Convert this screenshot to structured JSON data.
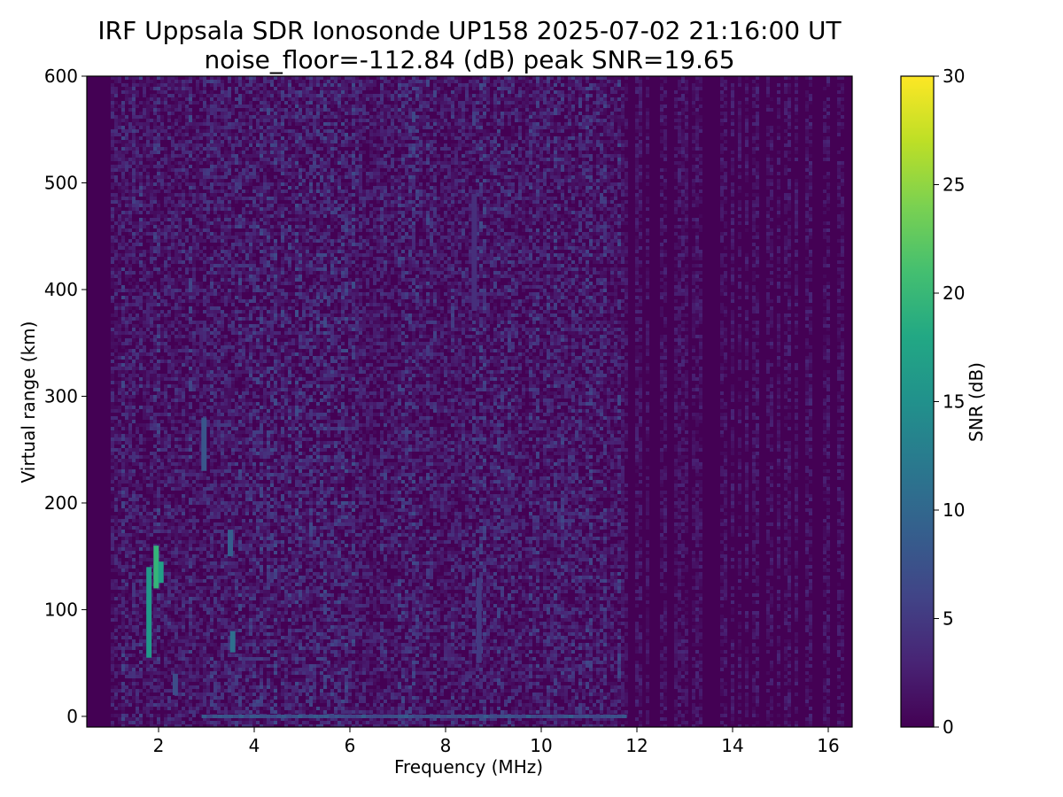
{
  "chart_data": {
    "type": "heatmap",
    "title": "IRF Uppsala SDR Ionosonde UP158 2025-07-02 21:16:00  UT",
    "subtitle": "noise_floor=-112.84 (dB) peak SNR=19.65",
    "xlabel": "Frequency (MHz)",
    "ylabel": "Virtual range (km)",
    "colorbar_label": "SNR (dB)",
    "colormap": "viridis",
    "xlim": [
      0.5,
      16.5
    ],
    "ylim": [
      -10,
      600
    ],
    "clim": [
      0,
      30
    ],
    "x_ticks": [
      2,
      4,
      6,
      8,
      10,
      12,
      14,
      16
    ],
    "y_ticks": [
      0,
      100,
      200,
      300,
      400,
      500,
      600
    ],
    "colorbar_ticks": [
      0,
      5,
      10,
      15,
      20,
      25,
      30
    ],
    "background_snr": {
      "freq_range_mhz": [
        1.0,
        16.4
      ],
      "high_band_start_mhz": 11.7,
      "low_band_snr_db": [
        0,
        6
      ],
      "high_band_snr_db": [
        0,
        3
      ]
    },
    "echo_traces": [
      {
        "freq_mhz": 1.8,
        "range_km": [
          55,
          140
        ],
        "snr_db": 16
      },
      {
        "freq_mhz": 1.95,
        "range_km": [
          120,
          160
        ],
        "snr_db": 19.65
      },
      {
        "freq_mhz": 2.05,
        "range_km": [
          125,
          145
        ],
        "snr_db": 17
      },
      {
        "freq_mhz": 2.95,
        "range_km": [
          230,
          280
        ],
        "snr_db": 8
      },
      {
        "freq_mhz": 3.5,
        "range_km": [
          150,
          175
        ],
        "snr_db": 9
      },
      {
        "freq_mhz": 3.55,
        "range_km": [
          60,
          80
        ],
        "snr_db": 11
      },
      {
        "freq_mhz": 2.35,
        "range_km": [
          20,
          40
        ],
        "snr_db": 7
      },
      {
        "freq_mhz": 8.7,
        "range_km": [
          50,
          130
        ],
        "snr_db": 5
      },
      {
        "freq_mhz": 8.6,
        "range_km": [
          380,
          490
        ],
        "snr_db": 4
      }
    ],
    "ground_line": {
      "range_km": 0,
      "freq_range_mhz": [
        2.9,
        11.7
      ],
      "snr_db": [
        6,
        9
      ]
    }
  }
}
